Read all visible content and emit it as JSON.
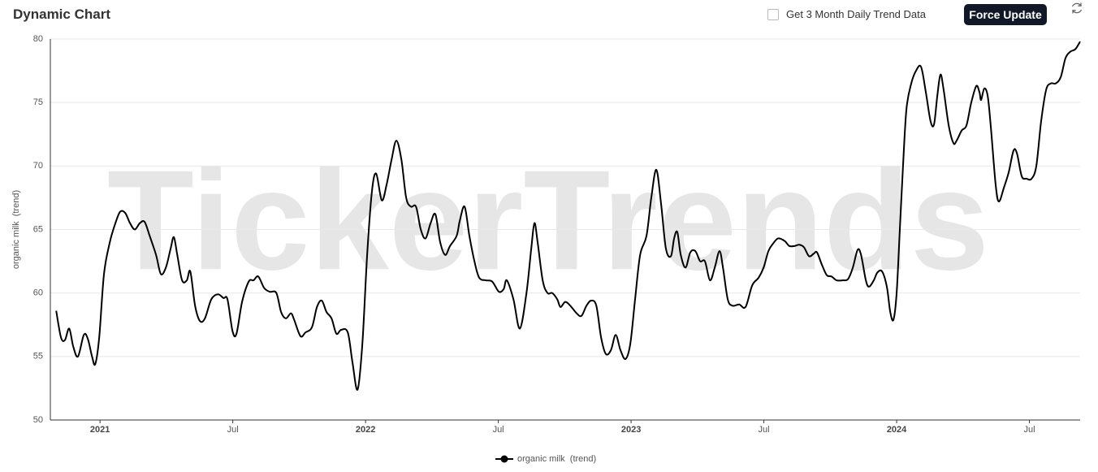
{
  "header": {
    "title": "Dynamic Chart",
    "checkbox_label": "Get 3 Month Daily Trend Data",
    "button": "Force Update"
  },
  "chart_data": {
    "type": "line",
    "watermark": "TickerTrends",
    "y_label": "organic milk  (trend)",
    "x": [
      2020.835,
      2020.853,
      2020.868,
      2020.884,
      2020.899,
      2020.917,
      2020.939,
      2020.954,
      2020.97,
      2020.982,
      2020.997,
      2021.015,
      2021.037,
      2021.058,
      2021.076,
      2021.095,
      2021.113,
      2021.131,
      2021.15,
      2021.168,
      2021.187,
      2021.211,
      2021.229,
      2021.248,
      2021.266,
      2021.278,
      2021.291,
      2021.309,
      2021.327,
      2021.34,
      2021.358,
      2021.376,
      2021.395,
      2021.419,
      2021.444,
      2021.465,
      2021.48,
      2021.499,
      2021.514,
      2021.535,
      2021.56,
      2021.578,
      2021.596,
      2021.618,
      2021.639,
      2021.664,
      2021.682,
      2021.7,
      2021.719,
      2021.731,
      2021.755,
      2021.774,
      2021.798,
      2021.817,
      2021.835,
      2021.853,
      2021.872,
      2021.89,
      2021.908,
      2021.933,
      2021.951,
      2021.97,
      2021.988,
      2022.006,
      2022.024,
      2022.04,
      2022.061,
      2022.079,
      2022.098,
      2022.116,
      2022.135,
      2022.153,
      2022.171,
      2022.19,
      2022.208,
      2022.226,
      2022.245,
      2022.263,
      2022.281,
      2022.3,
      2022.318,
      2022.343,
      2022.355,
      2022.373,
      2022.391,
      2022.41,
      2022.428,
      2022.453,
      2022.477,
      2022.502,
      2022.52,
      2022.532,
      2022.557,
      2022.581,
      2022.606,
      2022.624,
      2022.636,
      2022.648,
      2022.667,
      2022.685,
      2022.703,
      2022.722,
      2022.734,
      2022.752,
      2022.771,
      2022.795,
      2022.813,
      2022.832,
      2022.85,
      2022.869,
      2022.887,
      2022.905,
      2022.924,
      2022.942,
      2022.96,
      2022.979,
      2022.997,
      2023.015,
      2023.034,
      2023.058,
      2023.076,
      2023.095,
      2023.113,
      2023.131,
      2023.15,
      2023.162,
      2023.174,
      2023.187,
      2023.205,
      2023.223,
      2023.242,
      2023.26,
      2023.278,
      2023.297,
      2023.315,
      2023.333,
      2023.346,
      2023.364,
      2023.382,
      2023.407,
      2023.431,
      2023.456,
      2023.48,
      2023.499,
      2023.517,
      2023.535,
      2023.554,
      2023.578,
      2023.596,
      2023.615,
      2023.633,
      2023.651,
      2023.67,
      2023.688,
      2023.7,
      2023.719,
      2023.737,
      2023.755,
      2023.774,
      2023.798,
      2023.817,
      2023.835,
      2023.853,
      2023.866,
      2023.884,
      2023.896,
      2023.914,
      2023.927,
      2023.945,
      2023.963,
      2023.976,
      2023.988,
      2024.0,
      2024.012,
      2024.024,
      2024.037,
      2024.055,
      2024.073,
      2024.092,
      2024.11,
      2024.128,
      2024.141,
      2024.153,
      2024.165,
      2024.177,
      2024.196,
      2024.214,
      2024.226,
      2024.245,
      2024.263,
      2024.281,
      2024.3,
      2024.312,
      2024.318,
      2024.33,
      2024.343,
      2024.355,
      2024.373,
      2024.385,
      2024.404,
      2024.422,
      2024.44,
      2024.453,
      2024.471,
      2024.489,
      2024.508,
      2024.526,
      2024.544,
      2024.563,
      2024.581,
      2024.599,
      2024.618,
      2024.636,
      2024.654,
      2024.673,
      2024.691
    ],
    "series": [
      {
        "name": "organic milk  (trend)",
        "color": "#000000",
        "values": [
          58.6,
          56.5,
          56.3,
          57.2,
          55.8,
          55.0,
          56.7,
          56.4,
          55.0,
          54.4,
          56.5,
          61.5,
          64.0,
          65.5,
          66.4,
          66.3,
          65.5,
          65.0,
          65.5,
          65.6,
          64.5,
          63.0,
          61.5,
          62.0,
          63.5,
          64.4,
          63.0,
          61.0,
          61.0,
          61.7,
          59.0,
          57.8,
          58.0,
          59.5,
          59.9,
          59.6,
          59.5,
          57.0,
          56.8,
          59.3,
          60.9,
          61.0,
          61.3,
          60.4,
          60.1,
          60.0,
          58.5,
          58.0,
          58.4,
          57.9,
          56.6,
          56.9,
          57.3,
          58.9,
          59.4,
          58.5,
          58.0,
          56.8,
          57.1,
          56.9,
          54.5,
          52.4,
          56.0,
          63.0,
          68.0,
          69.4,
          67.3,
          68.5,
          70.5,
          72.0,
          70.5,
          67.5,
          66.8,
          66.8,
          65.0,
          64.3,
          65.5,
          66.2,
          64.0,
          63.0,
          63.7,
          64.5,
          65.7,
          66.8,
          64.5,
          62.5,
          61.2,
          61.0,
          60.9,
          60.1,
          60.3,
          61.0,
          59.5,
          57.2,
          60.0,
          63.5,
          65.5,
          64.0,
          61.0,
          60.0,
          60.0,
          59.5,
          58.9,
          59.3,
          59.0,
          58.4,
          58.2,
          59.0,
          59.4,
          59.0,
          56.5,
          55.2,
          55.5,
          56.7,
          55.5,
          54.8,
          56.0,
          59.5,
          63.0,
          64.5,
          67.5,
          69.7,
          67.0,
          63.5,
          62.9,
          64.3,
          64.8,
          63.0,
          62.0,
          63.2,
          63.3,
          62.5,
          62.5,
          61.0,
          62.0,
          63.3,
          62.0,
          59.5,
          59.0,
          59.1,
          58.9,
          60.6,
          61.2,
          62.0,
          63.3,
          63.9,
          64.3,
          64.1,
          63.7,
          63.7,
          63.8,
          63.6,
          62.9,
          63.1,
          63.2,
          62.2,
          61.4,
          61.3,
          61.0,
          61.0,
          61.1,
          62.0,
          63.4,
          63.0,
          61.0,
          60.5,
          61.0,
          61.6,
          61.7,
          60.5,
          58.5,
          57.9,
          60.0,
          65.0,
          70.0,
          74.5,
          76.5,
          77.5,
          77.8,
          75.8,
          73.5,
          73.3,
          75.5,
          77.2,
          76.0,
          73.2,
          71.8,
          72.0,
          72.8,
          73.2,
          75.0,
          76.3,
          75.8,
          75.2,
          76.1,
          75.5,
          73.0,
          68.5,
          67.2,
          68.3,
          69.5,
          71.2,
          71.0,
          69.2,
          69.0,
          69.0,
          70.0,
          73.5,
          76.0,
          76.5,
          76.5,
          77.0,
          78.5,
          79.0,
          79.2,
          79.8
        ]
      }
    ],
    "xlim": [
      2020.813,
      2024.691
    ],
    "xticks": [
      2021,
      {
        "value": 2021.5,
        "label": "Jul"
      },
      2022,
      {
        "value": 2022.5,
        "label": "Jul"
      },
      2023,
      {
        "value": 2023.5,
        "label": "Jul"
      },
      2024,
      {
        "value": 2024.5,
        "label": "Jul"
      }
    ],
    "ylim": [
      50,
      80
    ],
    "yticks": [
      50,
      55,
      60,
      65,
      70,
      75,
      80
    ],
    "grid": true,
    "legend": "bottom"
  }
}
